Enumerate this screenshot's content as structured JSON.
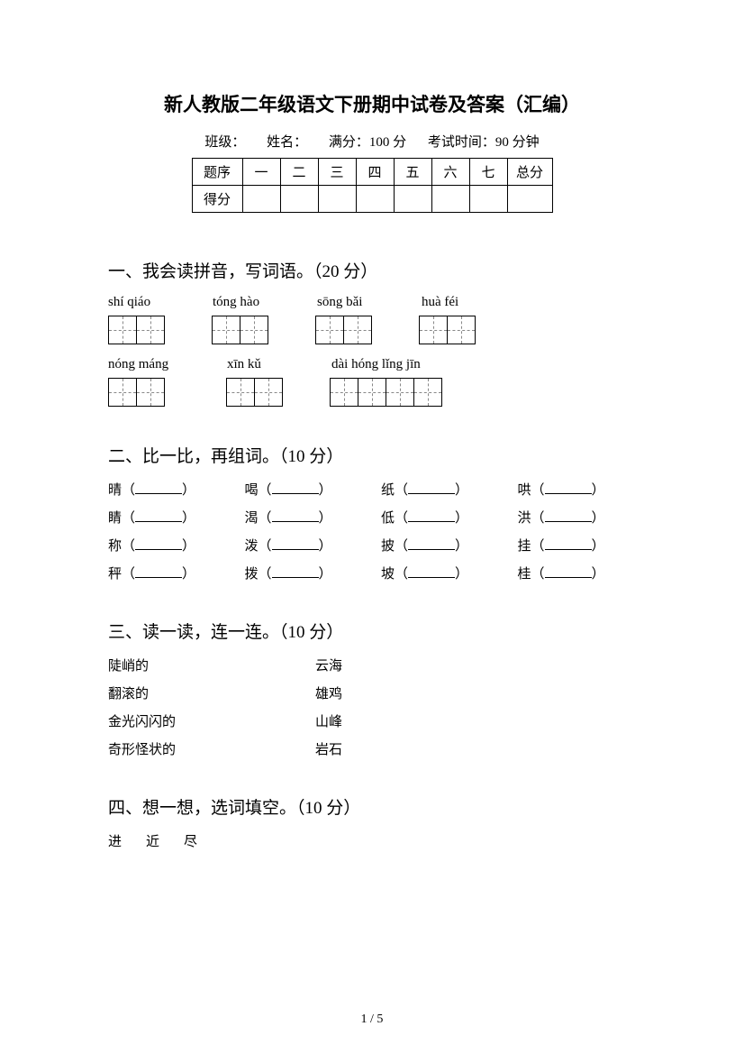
{
  "title": "新人教版二年级语文下册期中试卷及答案（汇编）",
  "meta": {
    "class_label": "班级：",
    "name_label": "姓名：",
    "full_score_label": "满分：100 分",
    "time_label": "考试时间：90 分钟"
  },
  "score_table": {
    "row_header_1": "题序",
    "row_header_2": "得分",
    "cols": [
      "一",
      "二",
      "三",
      "四",
      "五",
      "六",
      "七"
    ],
    "total_label": "总分"
  },
  "sections": {
    "s1": {
      "title": "一、我会读拼音，写词语。（20 分）",
      "row1": [
        {
          "pinyin": "shí qiáo",
          "count": 2
        },
        {
          "pinyin": "tóng hào",
          "count": 2
        },
        {
          "pinyin": "sōng bǎi",
          "count": 2
        },
        {
          "pinyin": "huà féi",
          "count": 2
        }
      ],
      "row2": [
        {
          "pinyin": "nóng máng",
          "count": 2
        },
        {
          "pinyin": "xīn kǔ",
          "count": 2
        },
        {
          "pinyin": "dài hóng lǐng jīn",
          "count": 4
        }
      ]
    },
    "s2": {
      "title": "二、比一比，再组词。（10 分）",
      "rows": [
        [
          "晴",
          "喝",
          "纸",
          "哄"
        ],
        [
          "睛",
          "渴",
          "低",
          "洪"
        ],
        [
          "称",
          "泼",
          "披",
          "挂"
        ],
        [
          "秤",
          "拨",
          "坡",
          "桂"
        ]
      ]
    },
    "s3": {
      "title": "三、读一读，连一连。（10 分）",
      "left": [
        "陡峭的",
        "翻滚的",
        "金光闪闪的",
        "奇形怪状的"
      ],
      "right": [
        "云海",
        "雄鸡",
        "山峰",
        "岩石"
      ]
    },
    "s4": {
      "title": "四、想一想，选词填空。（10 分）",
      "choices": "进　近　尽"
    }
  },
  "page_number": "1 / 5"
}
